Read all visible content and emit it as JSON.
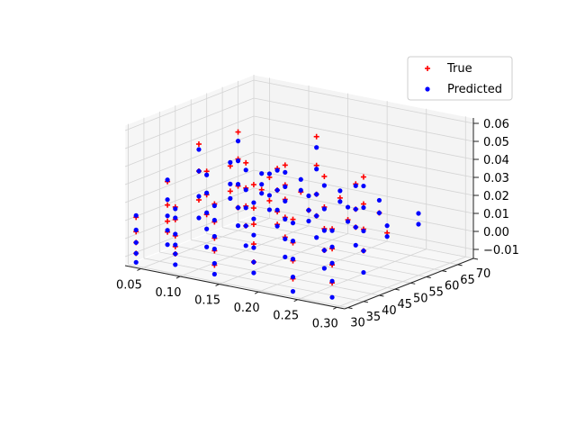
{
  "chart_data": {
    "type": "scatter",
    "projection": "3d",
    "title": "",
    "xlabel": "",
    "ylabel": "",
    "zlabel": "",
    "xlim": [
      0.03,
      0.31
    ],
    "ylim": [
      29,
      70
    ],
    "zlim": [
      -0.015,
      0.063
    ],
    "x_ticks": [
      "0.05",
      "0.10",
      "0.15",
      "0.20",
      "0.25",
      "0.30"
    ],
    "y_ticks": [
      "30",
      "35",
      "40",
      "45",
      "50",
      "55",
      "60",
      "65",
      "70"
    ],
    "z_ticks": [
      "−0.01",
      "0.00",
      "0.01",
      "0.02",
      "0.03",
      "0.04",
      "0.05",
      "0.06"
    ],
    "grid": true,
    "legend": "top-right",
    "series": [
      {
        "name": "True",
        "marker": "+",
        "color": "#ff0000",
        "points": [
          [
            0.04,
            30,
            0.012
          ],
          [
            0.04,
            30,
            0.004
          ],
          [
            0.04,
            30,
            -0.002
          ],
          [
            0.04,
            30,
            -0.008
          ],
          [
            0.09,
            30,
            0.022
          ],
          [
            0.09,
            30,
            0.015
          ],
          [
            0.09,
            30,
            0.006
          ],
          [
            0.09,
            30,
            0.0
          ],
          [
            0.09,
            30,
            -0.004
          ],
          [
            0.14,
            30,
            0.028
          ],
          [
            0.14,
            30,
            0.018
          ],
          [
            0.14,
            30,
            0.009
          ],
          [
            0.14,
            30,
            0.002
          ],
          [
            0.14,
            30,
            -0.006
          ],
          [
            0.19,
            30,
            0.043
          ],
          [
            0.19,
            30,
            0.03
          ],
          [
            0.19,
            30,
            0.021
          ],
          [
            0.19,
            30,
            0.01
          ],
          [
            0.19,
            30,
            0.0
          ],
          [
            0.24,
            30,
            0.028
          ],
          [
            0.24,
            30,
            0.015
          ],
          [
            0.24,
            30,
            0.005
          ],
          [
            0.24,
            30,
            -0.005
          ],
          [
            0.29,
            30,
            0.027
          ],
          [
            0.29,
            30,
            0.016
          ],
          [
            0.29,
            30,
            0.007
          ],
          [
            0.29,
            30,
            -0.003
          ],
          [
            0.04,
            40,
            0.025
          ],
          [
            0.04,
            40,
            0.012
          ],
          [
            0.04,
            40,
            0.003
          ],
          [
            0.04,
            40,
            -0.003
          ],
          [
            0.09,
            40,
            0.035
          ],
          [
            0.09,
            40,
            0.022
          ],
          [
            0.09,
            40,
            0.011
          ],
          [
            0.14,
            40,
            0.044
          ],
          [
            0.14,
            40,
            0.03
          ],
          [
            0.14,
            40,
            0.02
          ],
          [
            0.14,
            40,
            0.009
          ],
          [
            0.19,
            40,
            0.047
          ],
          [
            0.19,
            40,
            0.036
          ],
          [
            0.19,
            40,
            0.028
          ],
          [
            0.19,
            40,
            0.018
          ],
          [
            0.19,
            40,
            0.007
          ],
          [
            0.24,
            40,
            0.045
          ],
          [
            0.24,
            40,
            0.028
          ],
          [
            0.24,
            40,
            0.016
          ],
          [
            0.24,
            40,
            0.004
          ],
          [
            0.29,
            40,
            0.049
          ],
          [
            0.29,
            40,
            0.034
          ],
          [
            0.29,
            40,
            0.02
          ],
          [
            0.29,
            40,
            0.008
          ],
          [
            0.04,
            50,
            0.039
          ],
          [
            0.04,
            50,
            0.024
          ],
          [
            0.04,
            50,
            0.008
          ],
          [
            0.09,
            50,
            0.05
          ],
          [
            0.09,
            50,
            0.035
          ],
          [
            0.09,
            50,
            0.02
          ],
          [
            0.09,
            50,
            0.008
          ],
          [
            0.14,
            50,
            0.034
          ],
          [
            0.14,
            50,
            0.022
          ],
          [
            0.14,
            50,
            0.01
          ],
          [
            0.14,
            50,
            0.003
          ],
          [
            0.19,
            50,
            0.056
          ],
          [
            0.19,
            50,
            0.04
          ],
          [
            0.19,
            50,
            0.024
          ],
          [
            0.19,
            50,
            0.012
          ],
          [
            0.24,
            50,
            0.034
          ],
          [
            0.24,
            50,
            0.02
          ],
          [
            0.24,
            50,
            0.01
          ],
          [
            0.04,
            60,
            0.02
          ],
          [
            0.04,
            60,
            0.006
          ],
          [
            0.09,
            60,
            0.018
          ],
          [
            0.09,
            60,
            0.005
          ],
          [
            0.14,
            60,
            0.004
          ],
          [
            0.19,
            60,
            0.003
          ],
          [
            0.24,
            60,
            0.0
          ],
          [
            0.04,
            70,
            0.0
          ],
          [
            0.09,
            70,
            0.003
          ],
          [
            0.14,
            70,
            0.004
          ],
          [
            0.19,
            70,
            0.0
          ]
        ]
      },
      {
        "name": "Predicted",
        "marker": "o",
        "color": "#0000ff",
        "points": [
          [
            0.04,
            30,
            0.013
          ],
          [
            0.04,
            30,
            0.005
          ],
          [
            0.04,
            30,
            -0.002
          ],
          [
            0.04,
            30,
            -0.008
          ],
          [
            0.04,
            30,
            -0.013
          ],
          [
            0.09,
            30,
            0.021
          ],
          [
            0.09,
            30,
            0.016
          ],
          [
            0.09,
            30,
            0.007
          ],
          [
            0.09,
            30,
            0.001
          ],
          [
            0.09,
            30,
            -0.004
          ],
          [
            0.09,
            30,
            -0.01
          ],
          [
            0.14,
            30,
            0.027
          ],
          [
            0.14,
            30,
            0.019
          ],
          [
            0.14,
            30,
            0.01
          ],
          [
            0.14,
            30,
            0.003
          ],
          [
            0.14,
            30,
            -0.005
          ],
          [
            0.14,
            30,
            -0.011
          ],
          [
            0.19,
            30,
            0.033
          ],
          [
            0.19,
            30,
            0.024
          ],
          [
            0.19,
            30,
            0.015
          ],
          [
            0.19,
            30,
            0.008
          ],
          [
            0.19,
            30,
            0.0
          ],
          [
            0.19,
            30,
            -0.006
          ],
          [
            0.24,
            30,
            0.026
          ],
          [
            0.24,
            30,
            0.016
          ],
          [
            0.24,
            30,
            0.006
          ],
          [
            0.24,
            30,
            -0.004
          ],
          [
            0.24,
            30,
            -0.012
          ],
          [
            0.29,
            30,
            0.026
          ],
          [
            0.29,
            30,
            0.017
          ],
          [
            0.29,
            30,
            0.008
          ],
          [
            0.29,
            30,
            -0.002
          ],
          [
            0.29,
            30,
            -0.011
          ],
          [
            0.04,
            40,
            0.026
          ],
          [
            0.04,
            40,
            0.015
          ],
          [
            0.04,
            40,
            0.006
          ],
          [
            0.04,
            40,
            -0.002
          ],
          [
            0.04,
            40,
            -0.01
          ],
          [
            0.09,
            40,
            0.033
          ],
          [
            0.09,
            40,
            0.023
          ],
          [
            0.09,
            40,
            0.012
          ],
          [
            0.09,
            40,
            0.003
          ],
          [
            0.09,
            40,
            -0.007
          ],
          [
            0.14,
            40,
            0.04
          ],
          [
            0.14,
            40,
            0.029
          ],
          [
            0.14,
            40,
            0.019
          ],
          [
            0.14,
            40,
            0.009
          ],
          [
            0.14,
            40,
            -0.002
          ],
          [
            0.19,
            40,
            0.043
          ],
          [
            0.19,
            40,
            0.035
          ],
          [
            0.19,
            40,
            0.027
          ],
          [
            0.19,
            40,
            0.017
          ],
          [
            0.19,
            40,
            0.006
          ],
          [
            0.19,
            40,
            -0.004
          ],
          [
            0.24,
            40,
            0.04
          ],
          [
            0.24,
            40,
            0.027
          ],
          [
            0.24,
            40,
            0.015
          ],
          [
            0.24,
            40,
            0.004
          ],
          [
            0.24,
            40,
            -0.006
          ],
          [
            0.29,
            40,
            0.044
          ],
          [
            0.29,
            40,
            0.032
          ],
          [
            0.29,
            40,
            0.019
          ],
          [
            0.29,
            40,
            0.008
          ],
          [
            0.29,
            40,
            -0.004
          ],
          [
            0.04,
            50,
            0.036
          ],
          [
            0.04,
            50,
            0.024
          ],
          [
            0.04,
            50,
            0.01
          ],
          [
            0.04,
            50,
            -0.002
          ],
          [
            0.09,
            50,
            0.045
          ],
          [
            0.09,
            50,
            0.034
          ],
          [
            0.09,
            50,
            0.021
          ],
          [
            0.09,
            50,
            0.008
          ],
          [
            0.09,
            50,
            -0.002
          ],
          [
            0.14,
            50,
            0.033
          ],
          [
            0.14,
            50,
            0.022
          ],
          [
            0.14,
            50,
            0.011
          ],
          [
            0.14,
            50,
            0.002
          ],
          [
            0.19,
            50,
            0.05
          ],
          [
            0.19,
            50,
            0.038
          ],
          [
            0.19,
            50,
            0.024
          ],
          [
            0.19,
            50,
            0.012
          ],
          [
            0.19,
            50,
            0.0
          ],
          [
            0.24,
            50,
            0.033
          ],
          [
            0.24,
            50,
            0.02
          ],
          [
            0.24,
            50,
            0.01
          ],
          [
            0.24,
            50,
            0.0
          ],
          [
            0.04,
            60,
            0.022
          ],
          [
            0.04,
            60,
            0.01
          ],
          [
            0.04,
            60,
            0.002
          ],
          [
            0.09,
            60,
            0.02
          ],
          [
            0.09,
            60,
            0.008
          ],
          [
            0.09,
            60,
            0.0
          ],
          [
            0.14,
            60,
            0.012
          ],
          [
            0.14,
            60,
            0.004
          ],
          [
            0.14,
            60,
            -0.002
          ],
          [
            0.19,
            60,
            0.01
          ],
          [
            0.19,
            60,
            0.002
          ],
          [
            0.24,
            60,
            0.004
          ],
          [
            0.24,
            60,
            -0.002
          ],
          [
            0.04,
            70,
            0.009
          ],
          [
            0.04,
            70,
            0.003
          ],
          [
            0.04,
            70,
            -0.002
          ],
          [
            0.09,
            70,
            0.01
          ],
          [
            0.09,
            70,
            0.004
          ],
          [
            0.14,
            70,
            0.008
          ],
          [
            0.14,
            70,
            0.002
          ],
          [
            0.19,
            70,
            0.007
          ],
          [
            0.19,
            70,
            0.0
          ],
          [
            0.24,
            70,
            0.004
          ],
          [
            0.24,
            70,
            -0.002
          ]
        ]
      }
    ]
  }
}
